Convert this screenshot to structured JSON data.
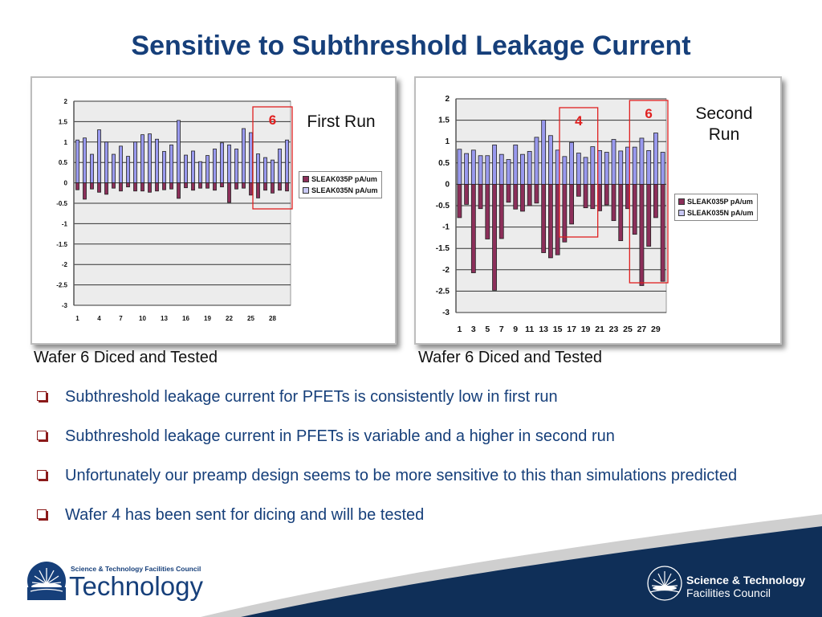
{
  "slide": {
    "title": "Sensitive to Subthreshold Leakage Current",
    "captions": [
      "Wafer 6 Diced and Tested",
      "Wafer 6 Diced and Tested"
    ],
    "bullets": [
      "Subthreshold leakage current for PFETs is consistently low in first run",
      "Subthreshold leakage current in PFETs is variable and a higher in second run",
      "Unfortunately our preamp design seems to be more sensitive to this than simulations predicted",
      "Wafer 4 has been sent for dicing and will be tested"
    ],
    "logo_left": {
      "line1": "Science & Technology Facilities Council",
      "line2": "Technology"
    },
    "logo_right": {
      "line1": "Science & Technology",
      "line2": "Facilities Council"
    }
  },
  "colors": {
    "title": "#163f7a",
    "series_p": "#8c2f5a",
    "series_n": "#9999ee",
    "highlight": "#e02020",
    "plot_bg": "#ececec",
    "footer": "#0f2f58"
  },
  "chart_data": [
    {
      "type": "bar",
      "run_label": "First Run",
      "x": [
        1,
        2,
        3,
        4,
        5,
        6,
        7,
        8,
        9,
        10,
        11,
        12,
        13,
        14,
        15,
        16,
        17,
        18,
        19,
        20,
        21,
        22,
        23,
        24,
        25,
        26,
        27,
        28,
        29,
        30
      ],
      "xtick_labels": [
        "1",
        "4",
        "7",
        "10",
        "13",
        "16",
        "19",
        "22",
        "25",
        "28"
      ],
      "ylim": [
        -3,
        2
      ],
      "yticks": [
        "2",
        "1.5",
        "1",
        "0.5",
        "0",
        "-0.5",
        "-1",
        "-1.5",
        "-2",
        "-2.5",
        "-3"
      ],
      "grid": true,
      "legend_position": "right",
      "series": [
        {
          "name": "SLEAK035P pA/um",
          "values": [
            -0.17,
            -0.4,
            -0.15,
            -0.23,
            -0.28,
            -0.13,
            -0.2,
            -0.1,
            -0.2,
            -0.2,
            -0.23,
            -0.2,
            -0.17,
            -0.15,
            -0.38,
            -0.12,
            -0.18,
            -0.13,
            -0.13,
            -0.18,
            -0.1,
            -0.48,
            -0.15,
            -0.13,
            -0.3,
            -0.37,
            -0.18,
            -0.25,
            -0.18,
            -0.2
          ]
        },
        {
          "name": "SLEAK035N pA/um",
          "values": [
            1.05,
            1.1,
            0.7,
            1.3,
            1.0,
            0.7,
            0.9,
            0.65,
            1.0,
            1.18,
            1.2,
            1.07,
            0.77,
            0.93,
            1.53,
            0.68,
            0.78,
            0.52,
            0.67,
            0.83,
            0.98,
            0.93,
            0.83,
            1.33,
            1.23,
            0.71,
            0.62,
            0.56,
            0.83,
            1.05
          ]
        }
      ],
      "annotations": [
        {
          "label": "6",
          "x_range": [
            26,
            30
          ]
        }
      ]
    },
    {
      "type": "bar",
      "run_label": "Second Run",
      "x": [
        1,
        2,
        3,
        4,
        5,
        6,
        7,
        8,
        9,
        10,
        11,
        12,
        13,
        14,
        15,
        16,
        17,
        18,
        19,
        20,
        21,
        22,
        23,
        24,
        25,
        26,
        27,
        28,
        29,
        30
      ],
      "xtick_labels": [
        "1",
        "3",
        "5",
        "7",
        "9",
        "11",
        "13",
        "15",
        "17",
        "19",
        "21",
        "23",
        "25",
        "27",
        "29"
      ],
      "ylim": [
        -3,
        2
      ],
      "yticks": [
        "2",
        "1.5",
        "1",
        "0.5",
        "0",
        "-0.5",
        "-1",
        "-1.5",
        "-2",
        "-2.5",
        "-3"
      ],
      "grid": true,
      "legend_position": "right",
      "series": [
        {
          "name": "SLEAK035P pA/um",
          "values": [
            -0.78,
            -0.47,
            -2.07,
            -0.57,
            -1.28,
            -2.48,
            -1.27,
            -0.42,
            -0.58,
            -0.63,
            -0.5,
            -0.44,
            -1.6,
            -1.72,
            -1.65,
            -1.35,
            -0.93,
            -0.28,
            -0.55,
            -0.57,
            -0.62,
            -0.48,
            -0.85,
            -1.32,
            -0.57,
            -1.17,
            -2.37,
            -1.45,
            -0.78,
            -2.27
          ]
        },
        {
          "name": "SLEAK035N pA/um",
          "values": [
            0.82,
            0.72,
            0.8,
            0.67,
            0.67,
            0.92,
            0.7,
            0.58,
            0.92,
            0.7,
            0.77,
            1.1,
            1.5,
            1.14,
            0.8,
            0.65,
            0.98,
            0.73,
            0.63,
            0.88,
            0.79,
            0.75,
            1.05,
            0.78,
            0.87,
            0.87,
            1.08,
            0.79,
            1.2,
            0.75
          ]
        }
      ],
      "annotations": [
        {
          "label": "4",
          "x_range": [
            16,
            20
          ]
        },
        {
          "label": "6",
          "x_range": [
            26,
            30
          ]
        }
      ]
    }
  ]
}
